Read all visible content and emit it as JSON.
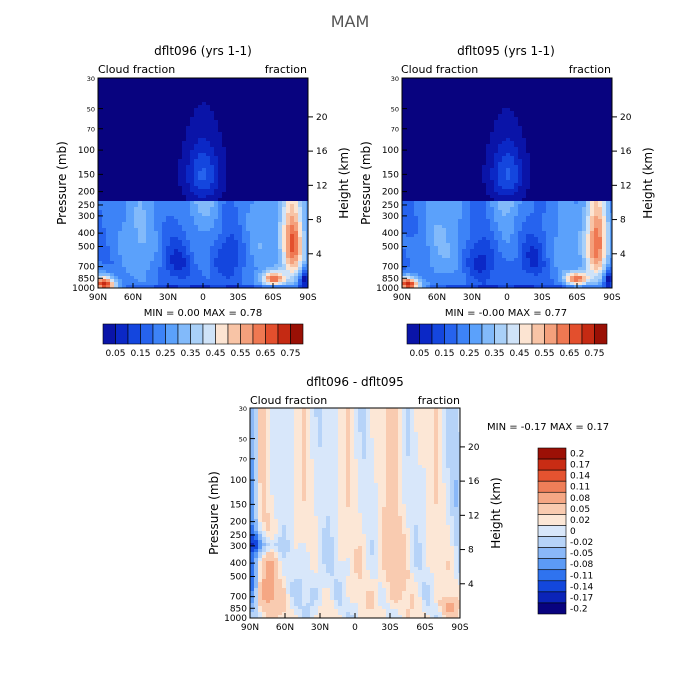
{
  "page_title": "MAM",
  "colors": {
    "absolute_palette": [
      "#08037f",
      "#0a14a8",
      "#0b28c6",
      "#1446de",
      "#2663ee",
      "#3d83f7",
      "#5ba1fb",
      "#82bafa",
      "#a9d0f8",
      "#cfe3f8",
      "#fce4d2",
      "#f8c4a6",
      "#f4a07c",
      "#ef7852",
      "#e34f2d",
      "#c52a13",
      "#9a1005",
      "#6e0302"
    ],
    "diff_palette": [
      "#08037f",
      "#0b24b8",
      "#1347dc",
      "#2f73ef",
      "#5c9bf6",
      "#8ab8f8",
      "#b6d3f8",
      "#d8e7fa",
      "#fce7d6",
      "#f9cbb0",
      "#f5a784",
      "#ef7e58",
      "#e45330",
      "#c92c14",
      "#9c1006"
    ]
  },
  "chart_data": [
    {
      "type": "heatmap",
      "title": "dflt096 (yrs 1-1)",
      "left_label": "Cloud fraction",
      "right_label": "fraction",
      "ylabel": "Pressure (mb)",
      "ylabel_right": "Height (km)",
      "x_ticks": [
        "90N",
        "60N",
        "30N",
        "0",
        "30S",
        "60S",
        "90S"
      ],
      "x_values": [
        90,
        60,
        30,
        0,
        -30,
        -60,
        -90
      ],
      "y_ticks": [
        "30",
        "50",
        "70",
        "100",
        "150",
        "200",
        "250",
        "300",
        "400",
        "500",
        "700",
        "850",
        "1000"
      ],
      "y_values": [
        30,
        50,
        70,
        100,
        150,
        200,
        250,
        300,
        400,
        500,
        700,
        850,
        1000
      ],
      "height_ticks": [
        "20",
        "16",
        "12",
        "8",
        "4"
      ],
      "height_values": [
        20,
        16,
        12,
        8,
        4
      ],
      "stats": "MIN =   0.00   MAX =   0.78",
      "colorbar_labels": [
        "0.05",
        "0.15",
        "0.25",
        "0.35",
        "0.45",
        "0.55",
        "0.65",
        "0.75"
      ],
      "colorbar_levels": [
        0.05,
        0.1,
        0.15,
        0.2,
        0.25,
        0.3,
        0.35,
        0.4,
        0.45,
        0.5,
        0.55,
        0.6,
        0.65,
        0.7,
        0.75,
        0.8
      ],
      "min": 0.0,
      "max": 0.78
    },
    {
      "type": "heatmap",
      "title": "dflt095 (yrs 1-1)",
      "left_label": "Cloud fraction",
      "right_label": "fraction",
      "ylabel": "Pressure (mb)",
      "ylabel_right": "Height (km)",
      "x_ticks": [
        "90N",
        "60N",
        "30N",
        "0",
        "30S",
        "60S",
        "90S"
      ],
      "x_values": [
        90,
        60,
        30,
        0,
        -30,
        -60,
        -90
      ],
      "y_ticks": [
        "30",
        "50",
        "70",
        "100",
        "150",
        "200",
        "250",
        "300",
        "400",
        "500",
        "700",
        "850",
        "1000"
      ],
      "y_values": [
        30,
        50,
        70,
        100,
        150,
        200,
        250,
        300,
        400,
        500,
        700,
        850,
        1000
      ],
      "height_ticks": [
        "20",
        "16",
        "12",
        "8",
        "4"
      ],
      "height_values": [
        20,
        16,
        12,
        8,
        4
      ],
      "stats": "MIN =  -0.00   MAX =   0.77",
      "colorbar_labels": [
        "0.05",
        "0.15",
        "0.25",
        "0.35",
        "0.45",
        "0.55",
        "0.65",
        "0.75"
      ],
      "colorbar_levels": [
        0.05,
        0.1,
        0.15,
        0.2,
        0.25,
        0.3,
        0.35,
        0.4,
        0.45,
        0.5,
        0.55,
        0.6,
        0.65,
        0.7,
        0.75,
        0.8
      ],
      "min": -0.0,
      "max": 0.77
    },
    {
      "type": "heatmap",
      "title": "dflt096 - dflt095",
      "left_label": "Cloud fraction",
      "right_label": "fraction",
      "ylabel": "Pressure (mb)",
      "ylabel_right": "Height (km)",
      "x_ticks": [
        "90N",
        "60N",
        "30N",
        "0",
        "30S",
        "60S",
        "90S"
      ],
      "x_values": [
        90,
        60,
        30,
        0,
        -30,
        -60,
        -90
      ],
      "y_ticks": [
        "30",
        "50",
        "70",
        "100",
        "150",
        "200",
        "250",
        "300",
        "400",
        "500",
        "700",
        "850",
        "1000"
      ],
      "y_values": [
        30,
        50,
        70,
        100,
        150,
        200,
        250,
        300,
        400,
        500,
        700,
        850,
        1000
      ],
      "height_ticks": [
        "20",
        "16",
        "12",
        "8",
        "4"
      ],
      "height_values": [
        20,
        16,
        12,
        8,
        4
      ],
      "stats": "MIN =  -0.17   MAX =   0.17",
      "colorbar_labels": [
        "0.2",
        "0.17",
        "0.14",
        "0.11",
        "0.08",
        "0.05",
        "0.02",
        "0",
        "-0.02",
        "-0.05",
        "-0.08",
        "-0.11",
        "-0.14",
        "-0.17",
        "-0.2"
      ],
      "colorbar_levels": [
        0.2,
        0.17,
        0.14,
        0.11,
        0.08,
        0.05,
        0.02,
        0,
        -0.02,
        -0.05,
        -0.08,
        -0.11,
        -0.14,
        -0.17,
        -0.2
      ],
      "min": -0.17,
      "max": 0.17
    }
  ]
}
